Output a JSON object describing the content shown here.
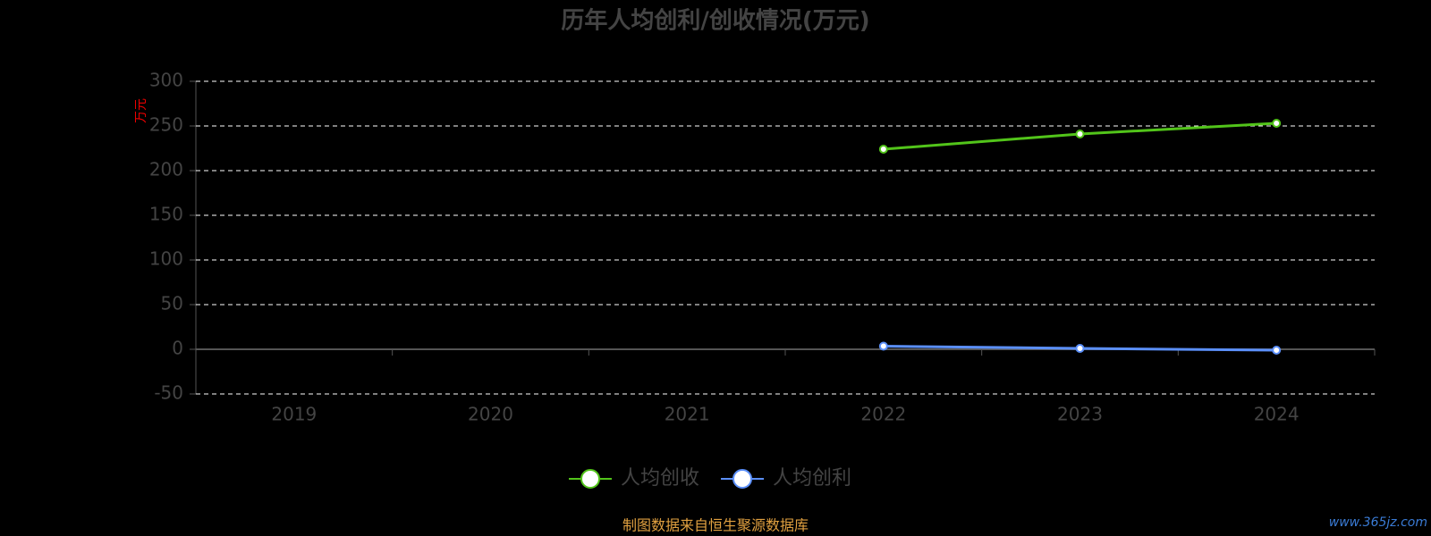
{
  "chart_data": {
    "type": "line",
    "title": "历年人均创利/创收情况(万元)",
    "y_label": "万元",
    "categories": [
      "2019",
      "2020",
      "2021",
      "2022",
      "2023",
      "2024"
    ],
    "series": [
      {
        "name": "人均创收",
        "color": "#52c41a",
        "values": [
          null,
          null,
          null,
          224,
          241,
          253
        ]
      },
      {
        "name": "人均创利",
        "color": "#5b8ff9",
        "values": [
          null,
          null,
          null,
          3.5,
          1,
          -1
        ]
      }
    ],
    "ylim": [
      -50,
      300
    ],
    "yticks": [
      -50,
      0,
      50,
      100,
      150,
      200,
      250,
      300
    ],
    "grid": true,
    "legend": "bottom",
    "source": "制图数据来自恒生聚源数据库",
    "watermark": "www.365jz.com"
  }
}
